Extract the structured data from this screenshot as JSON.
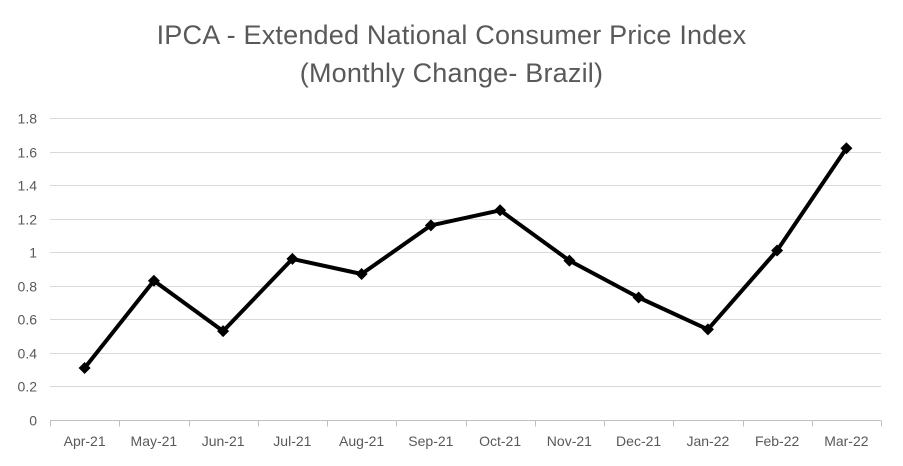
{
  "chart_data": {
    "type": "line",
    "title": "IPCA - Extended National Consumer Price Index",
    "subtitle": "(Monthly Change- Brazil)",
    "categories": [
      "Apr-21",
      "May-21",
      "Jun-21",
      "Jul-21",
      "Aug-21",
      "Sep-21",
      "Oct-21",
      "Nov-21",
      "Dec-21",
      "Jan-22",
      "Feb-22",
      "Mar-22"
    ],
    "series": [
      {
        "values": [
          0.31,
          0.83,
          0.53,
          0.96,
          0.87,
          1.16,
          1.25,
          0.95,
          0.73,
          0.54,
          1.01,
          1.62
        ]
      }
    ],
    "y_ticks": [
      "0",
      "0.2",
      "0.4",
      "0.6",
      "0.8",
      "1",
      "1.2",
      "1.4",
      "1.6",
      "1.8"
    ],
    "ylim": [
      0,
      1.8
    ],
    "grid": true,
    "legend": "none",
    "colors": {
      "line": "#000000",
      "grid": "#d9d9d9",
      "text": "#595959"
    }
  }
}
